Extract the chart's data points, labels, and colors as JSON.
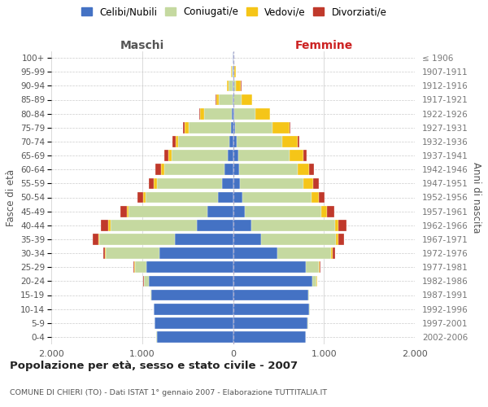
{
  "age_groups": [
    "0-4",
    "5-9",
    "10-14",
    "15-19",
    "20-24",
    "25-29",
    "30-34",
    "35-39",
    "40-44",
    "45-49",
    "50-54",
    "55-59",
    "60-64",
    "65-69",
    "70-74",
    "75-79",
    "80-84",
    "85-89",
    "90-94",
    "95-99",
    "100+"
  ],
  "birth_years": [
    "2002-2006",
    "1997-2001",
    "1992-1996",
    "1987-1991",
    "1982-1986",
    "1977-1981",
    "1972-1976",
    "1967-1971",
    "1962-1966",
    "1957-1961",
    "1952-1956",
    "1947-1951",
    "1942-1946",
    "1937-1941",
    "1932-1936",
    "1927-1931",
    "1922-1926",
    "1917-1921",
    "1912-1916",
    "1907-1911",
    "≤ 1906"
  ],
  "male": {
    "celibi": [
      840,
      860,
      870,
      900,
      930,
      950,
      810,
      640,
      400,
      280,
      170,
      120,
      90,
      60,
      40,
      20,
      10,
      5,
      3,
      2,
      1
    ],
    "coniugati": [
      5,
      5,
      5,
      10,
      50,
      130,
      590,
      830,
      950,
      870,
      790,
      720,
      670,
      620,
      560,
      470,
      310,
      150,
      50,
      15,
      5
    ],
    "vedovi": [
      0,
      0,
      0,
      0,
      0,
      5,
      10,
      15,
      20,
      20,
      30,
      30,
      35,
      30,
      35,
      40,
      40,
      30,
      15,
      5,
      2
    ],
    "divorziati": [
      0,
      0,
      0,
      0,
      5,
      10,
      20,
      60,
      85,
      70,
      60,
      60,
      60,
      50,
      35,
      20,
      10,
      5,
      2,
      1,
      0
    ]
  },
  "female": {
    "nubili": [
      800,
      820,
      840,
      830,
      870,
      800,
      490,
      310,
      200,
      130,
      100,
      80,
      70,
      55,
      40,
      25,
      15,
      8,
      4,
      2,
      1
    ],
    "coniugate": [
      5,
      5,
      5,
      10,
      50,
      140,
      590,
      820,
      920,
      840,
      760,
      690,
      640,
      570,
      500,
      410,
      230,
      90,
      25,
      8,
      2
    ],
    "vedove": [
      0,
      0,
      0,
      0,
      5,
      10,
      20,
      30,
      40,
      60,
      80,
      110,
      130,
      150,
      170,
      190,
      160,
      110,
      60,
      20,
      5
    ],
    "divorziate": [
      0,
      0,
      0,
      0,
      5,
      10,
      20,
      60,
      90,
      80,
      70,
      60,
      50,
      35,
      20,
      10,
      5,
      2,
      1,
      0,
      0
    ]
  },
  "colors": {
    "celibi_nubili": "#4472c4",
    "coniugati_e": "#c5d9a0",
    "vedovi_e": "#f5c518",
    "divorziati_e": "#c0392b"
  },
  "title": "Popolazione per età, sesso e stato civile - 2007",
  "subtitle": "COMUNE DI CHIERI (TO) - Dati ISTAT 1° gennaio 2007 - Elaborazione TUTTITALIA.IT",
  "header_left": "Maschi",
  "header_right": "Femmine",
  "ylabel_left": "Fasce di età",
  "ylabel_right": "Anni di nascita",
  "xlim": 2000,
  "background_color": "#ffffff",
  "grid_color": "#cccccc",
  "legend_labels": [
    "Celibi/Nubili",
    "Coniugati/e",
    "Vedovi/e",
    "Divorziati/e"
  ]
}
